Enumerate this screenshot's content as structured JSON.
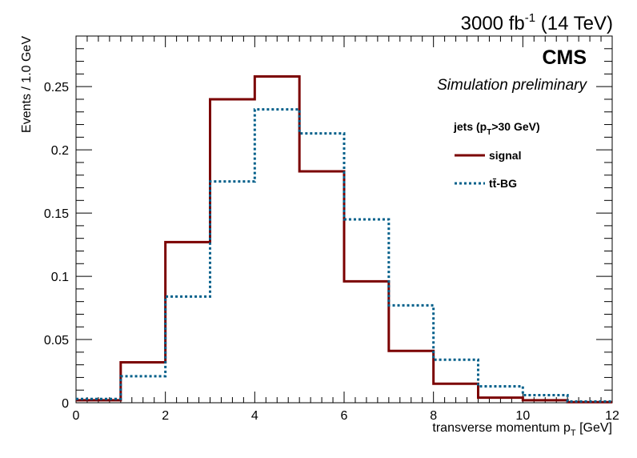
{
  "chart_data": {
    "type": "histogram",
    "lumi_text": "3000 fb",
    "lumi_sup": "-1",
    "lumi_energy": " (14 TeV)",
    "experiment": "CMS",
    "subtitle": "Simulation preliminary",
    "xlabel": "transverse momentum p",
    "xlabel_sub": "T",
    "xlabel_unit": " [GeV]",
    "ylabel": "Events / 1.0 GeV",
    "xlim": [
      0,
      12
    ],
    "ylim": [
      0,
      0.29
    ],
    "xticks": [
      0,
      2,
      4,
      6,
      8,
      10,
      12
    ],
    "xtick_labels": [
      "0",
      "2",
      "4",
      "6",
      "8",
      "10",
      "12"
    ],
    "yticks": [
      0,
      0.05,
      0.1,
      0.15,
      0.2,
      0.25
    ],
    "ytick_labels": [
      "0",
      "0.05",
      "0.1",
      "0.15",
      "0.2",
      "0.25"
    ],
    "bin_edges": [
      0,
      1,
      2,
      3,
      4,
      5,
      6,
      7,
      8,
      9,
      10,
      11,
      12
    ],
    "legend": {
      "header_pre": "jets (p",
      "header_sub": "T",
      "header_post": ">30 GeV)",
      "placement": "top-right"
    },
    "series": [
      {
        "name": "signal",
        "color": "#7b0000",
        "style": "solid",
        "values": [
          0.002,
          0.032,
          0.127,
          0.24,
          0.258,
          0.183,
          0.096,
          0.041,
          0.015,
          0.004,
          0.002,
          0.0005
        ]
      },
      {
        "name": "tt̄-BG",
        "color": "#005f8a",
        "style": "dotted",
        "values": [
          0.003,
          0.021,
          0.084,
          0.175,
          0.232,
          0.213,
          0.145,
          0.077,
          0.034,
          0.013,
          0.006,
          0.001
        ]
      }
    ]
  }
}
